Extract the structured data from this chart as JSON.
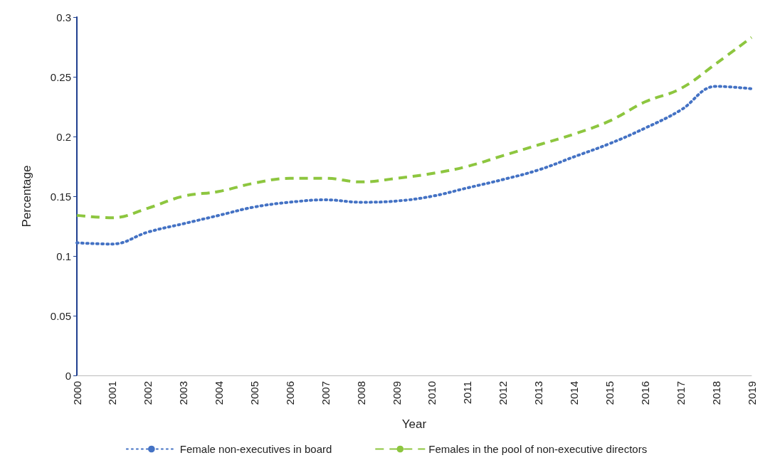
{
  "chart_data": {
    "type": "line",
    "xlabel": "Year",
    "ylabel": "Percentage",
    "categories": [
      "2000",
      "2001",
      "2002",
      "2003",
      "2004",
      "2005",
      "2006",
      "2007",
      "2008",
      "2009",
      "2010",
      "2011",
      "2012",
      "2013",
      "2014",
      "2015",
      "2016",
      "2017",
      "2018",
      "2019"
    ],
    "series": [
      {
        "name": "Female non-executives in board",
        "color": "#4472c4",
        "line_style": "dotted",
        "values": [
          0.111,
          0.11,
          0.12,
          0.127,
          0.134,
          0.141,
          0.145,
          0.147,
          0.145,
          0.146,
          0.15,
          0.157,
          0.164,
          0.172,
          0.183,
          0.194,
          0.207,
          0.222,
          0.242,
          0.24
        ]
      },
      {
        "name": "Females in the pool of non-executive directors",
        "color": "#8dc63f",
        "line_style": "dashed",
        "values": [
          0.134,
          0.132,
          0.14,
          0.15,
          0.154,
          0.161,
          0.165,
          0.165,
          0.162,
          0.165,
          0.169,
          0.175,
          0.184,
          0.193,
          0.202,
          0.213,
          0.229,
          0.24,
          0.261,
          0.283
        ]
      }
    ],
    "ylim": [
      0,
      0.3
    ],
    "yticks": [
      0,
      0.05,
      0.1,
      0.15,
      0.2,
      0.25,
      0.3
    ],
    "grid": false,
    "legend": "bottom",
    "marker": "none"
  }
}
